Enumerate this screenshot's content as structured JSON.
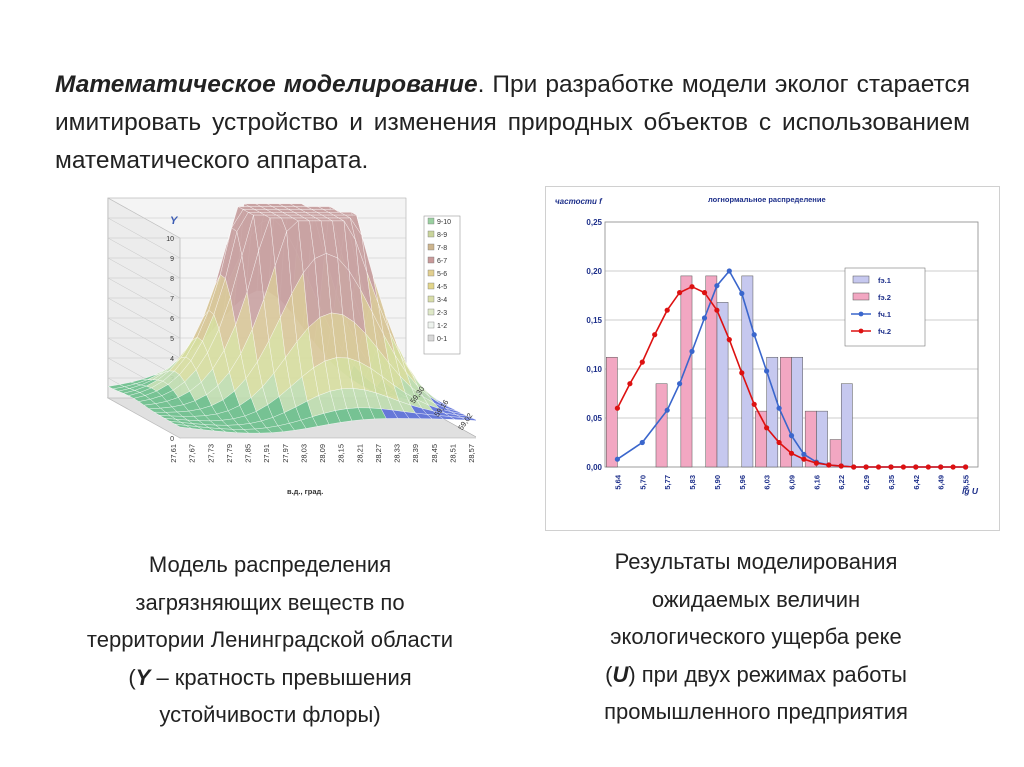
{
  "intro": {
    "term": "Математическое моделирование",
    "rest": ". При разработке модели эколог старается имитировать устройство и изменения природных объектов с использованием математического аппарата."
  },
  "captions": {
    "left": {
      "line1": "Модель распределения",
      "line2": "загрязняющих веществ по",
      "line3": "территории Ленинградской области",
      "var": "Y",
      "line4_rest": " – кратность превышения",
      "line5": "устойчивости флоры)"
    },
    "right": {
      "line1": "Результаты моделирования",
      "line2": "ожидаемых величин",
      "line3": "экологического ущерба  реке",
      "var": "U",
      "line4_rest": ") при двух режимах работы",
      "line5": "промышленного предприятия"
    }
  },
  "chart_data": [
    {
      "type": "surface3d",
      "ylabel": "Y",
      "xlabel": "в.д., град.",
      "zlabel_line1": "с.ш.,",
      "zlabel_line2": "град.",
      "y_ticks": [
        "0",
        "1",
        "2",
        "3",
        "4",
        "5",
        "6",
        "7",
        "8",
        "9",
        "10"
      ],
      "x_ticks": [
        "27,61",
        "27,67",
        "27,73",
        "27,79",
        "27,85",
        "27,91",
        "27,97",
        "28,03",
        "28,09",
        "28,15",
        "28,21",
        "28,27",
        "28,33",
        "28,39",
        "28,45",
        "28,51",
        "28,57"
      ],
      "z_ticks": [
        "58,88",
        "59,02",
        "59,16",
        "59,30"
      ],
      "legend": [
        "9-10",
        "8-9",
        "7-8",
        "6-7",
        "5-6",
        "4-5",
        "3-4",
        "2-3",
        "1-2",
        "0-1"
      ],
      "legend_colors": [
        "#9ad0a0",
        "#c9d49b",
        "#cdb58e",
        "#c99a9a",
        "#e2cf8f",
        "#e2d58a",
        "#d8dda8",
        "#dfe9c8",
        "#eef3ee",
        "#d8d8d8"
      ],
      "peaks": [
        {
          "x": 28.13,
          "z": 59.18,
          "y": 9.5
        },
        {
          "x": 28.15,
          "z": 59.1,
          "y": 7.0
        },
        {
          "x": 28.04,
          "z": 59.2,
          "y": 4.5
        },
        {
          "x": 28.27,
          "z": 59.14,
          "y": 5.0
        }
      ]
    },
    {
      "type": "bar+line",
      "title": "логнормальное распределение",
      "ylabel": "частости f",
      "xlabel": "lg U",
      "ylim": [
        0,
        0.25
      ],
      "y_ticks": [
        "0,00",
        "0,05",
        "0,10",
        "0,15",
        "0,20",
        "0,25"
      ],
      "categories": [
        "5,64",
        "5,70",
        "5,77",
        "5,83",
        "5,90",
        "5,96",
        "6,03",
        "6,09",
        "6,16",
        "6,22",
        "6,29",
        "6,35",
        "6,42",
        "6,49",
        "6,55"
      ],
      "series": [
        {
          "name": "fэ.1",
          "kind": "bar",
          "color": "#c6c8ef",
          "values": [
            0.0,
            0.0,
            0.0,
            0.0,
            0.168,
            0.195,
            0.112,
            0.112,
            0.057,
            0.085,
            0.0,
            0.0,
            0.0,
            0.0,
            0.0
          ]
        },
        {
          "name": "fэ.2",
          "kind": "bar",
          "color": "#f2a7c2",
          "values": [
            0.112,
            0.0,
            0.085,
            0.195,
            0.195,
            0.0,
            0.057,
            0.112,
            0.057,
            0.028,
            0.0,
            0.0,
            0.0,
            0.0,
            0.0
          ]
        },
        {
          "name": "fч.1",
          "kind": "line",
          "color": "#3a66cc",
          "x": [
            0.0,
            1.0,
            2.0,
            2.5,
            3.0,
            3.5,
            4.0,
            4.5,
            5.0,
            5.5,
            6.0,
            6.5,
            7.0,
            7.5,
            8.0,
            8.5,
            9.0,
            9.5,
            10.0,
            11.0,
            12.0,
            13.0,
            14.0
          ],
          "values": [
            0.008,
            0.025,
            0.058,
            0.085,
            0.118,
            0.152,
            0.185,
            0.2,
            0.177,
            0.135,
            0.098,
            0.06,
            0.032,
            0.013,
            0.005,
            0.002,
            0.001,
            0,
            0,
            0,
            0,
            0,
            0
          ]
        },
        {
          "name": "fч.2",
          "kind": "line",
          "color": "#dd1111",
          "x": [
            0.0,
            0.5,
            1.0,
            1.5,
            2.0,
            2.5,
            3.0,
            3.5,
            4.0,
            4.5,
            5.0,
            5.5,
            6.0,
            6.5,
            7.0,
            7.5,
            8.0,
            8.5,
            9.0,
            9.5,
            10.0,
            10.5,
            11.0,
            11.5,
            12.0,
            12.5,
            13.0,
            13.5,
            14.0
          ],
          "values": [
            0.06,
            0.085,
            0.107,
            0.135,
            0.16,
            0.178,
            0.184,
            0.178,
            0.16,
            0.13,
            0.096,
            0.064,
            0.04,
            0.025,
            0.014,
            0.008,
            0.004,
            0.002,
            0.001,
            0,
            0,
            0,
            0,
            0,
            0,
            0,
            0,
            0,
            0
          ]
        }
      ],
      "legend_position": "top-right"
    }
  ]
}
